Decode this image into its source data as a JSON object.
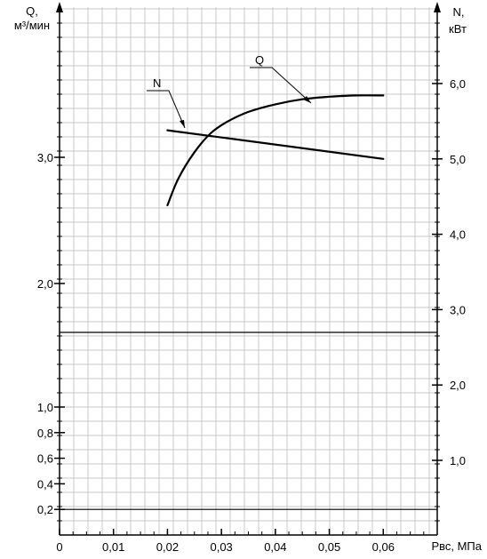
{
  "chart_data": {
    "type": "line",
    "x_label": "Pвс, МПа",
    "x_ticks": [
      "0",
      "0,01",
      "0,02",
      "0,03",
      "0,04",
      "0,05",
      "0,06"
    ],
    "x_range": [
      0,
      0.07
    ],
    "left_axis": {
      "label_line1": "Q,",
      "label_line2": "м³/мин",
      "ticks": [
        "0,2",
        "0,4",
        "0,6",
        "0,8",
        "1,0",
        "2,0",
        "3,0"
      ],
      "scales": [
        {
          "range": [
            0,
            1.0
          ],
          "values": [
            0.2,
            0.4,
            0.6,
            0.8,
            1.0
          ]
        },
        {
          "range": [
            1.6,
            3.9
          ],
          "values": [
            2.0,
            3.0
          ]
        }
      ]
    },
    "right_axis": {
      "label_line1": "N,",
      "label_line2": "кВт",
      "range": [
        0,
        7.0
      ],
      "ticks": [
        "1,0",
        "2,0",
        "3,0",
        "4,0",
        "5,0",
        "6,0"
      ],
      "values": [
        1.0,
        2.0,
        3.0,
        4.0,
        5.0,
        6.0
      ]
    },
    "series": [
      {
        "name": "Q",
        "axis": "left",
        "points": [
          [
            0.02,
            2.62
          ],
          [
            0.022,
            2.83
          ],
          [
            0.025,
            3.04
          ],
          [
            0.028,
            3.19
          ],
          [
            0.031,
            3.28
          ],
          [
            0.035,
            3.36
          ],
          [
            0.04,
            3.42
          ],
          [
            0.045,
            3.46
          ],
          [
            0.05,
            3.48
          ],
          [
            0.055,
            3.49
          ],
          [
            0.06,
            3.49
          ]
        ]
      },
      {
        "name": "N",
        "axis": "right",
        "points": [
          [
            0.02,
            5.38
          ],
          [
            0.06,
            5.0
          ]
        ]
      }
    ],
    "grid": true
  }
}
